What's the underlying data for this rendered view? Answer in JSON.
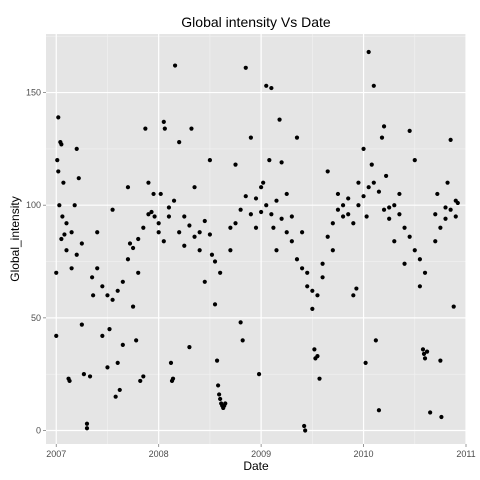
{
  "chart_data": {
    "type": "scatter",
    "title": "Global intensity Vs Date",
    "xlabel": "Date",
    "ylabel": "Global_intensity",
    "xlim": [
      2006.9,
      2011.0
    ],
    "ylim": [
      -6,
      176
    ],
    "x_ticks": [
      {
        "value": 2007,
        "label": "2007"
      },
      {
        "value": 2008,
        "label": "2008"
      },
      {
        "value": 2009,
        "label": "2009"
      },
      {
        "value": 2010,
        "label": "2010"
      },
      {
        "value": 2011,
        "label": "2011"
      }
    ],
    "y_ticks": [
      {
        "value": 0,
        "label": "0"
      },
      {
        "value": 50,
        "label": "50"
      },
      {
        "value": 100,
        "label": "100"
      },
      {
        "value": 150,
        "label": "150"
      }
    ],
    "grid": true,
    "legend": "none",
    "point_color": "#000000",
    "panel_color": "#e5e5e5",
    "points": [
      [
        2007.0,
        42
      ],
      [
        2007.0,
        70
      ],
      [
        2007.01,
        120
      ],
      [
        2007.02,
        139
      ],
      [
        2007.02,
        115
      ],
      [
        2007.03,
        100
      ],
      [
        2007.04,
        128
      ],
      [
        2007.05,
        127
      ],
      [
        2007.06,
        95
      ],
      [
        2007.07,
        110
      ],
      [
        2007.08,
        87
      ],
      [
        2007.1,
        80
      ],
      [
        2007.12,
        23
      ],
      [
        2007.13,
        22
      ],
      [
        2007.15,
        72
      ],
      [
        2007.18,
        100
      ],
      [
        2007.2,
        125
      ],
      [
        2007.22,
        112
      ],
      [
        2007.25,
        47
      ],
      [
        2007.27,
        25
      ],
      [
        2007.3,
        3
      ],
      [
        2007.3,
        1
      ],
      [
        2007.33,
        24
      ],
      [
        2007.36,
        60
      ],
      [
        2007.4,
        88
      ],
      [
        2007.45,
        42
      ],
      [
        2007.5,
        28
      ],
      [
        2007.52,
        45
      ],
      [
        2007.55,
        98
      ],
      [
        2007.58,
        15
      ],
      [
        2007.6,
        30
      ],
      [
        2007.62,
        18
      ],
      [
        2007.65,
        38
      ],
      [
        2007.7,
        108
      ],
      [
        2007.72,
        83
      ],
      [
        2007.75,
        55
      ],
      [
        2007.78,
        40
      ],
      [
        2007.8,
        85
      ],
      [
        2007.82,
        22
      ],
      [
        2007.85,
        24
      ],
      [
        2007.87,
        134
      ],
      [
        2007.9,
        110
      ],
      [
        2007.93,
        97
      ],
      [
        2007.96,
        95
      ],
      [
        2008.0,
        88
      ],
      [
        2008.02,
        105
      ],
      [
        2008.05,
        137
      ],
      [
        2008.06,
        134
      ],
      [
        2008.1,
        95
      ],
      [
        2008.12,
        30
      ],
      [
        2008.13,
        22
      ],
      [
        2008.14,
        23
      ],
      [
        2008.16,
        162
      ],
      [
        2008.2,
        128
      ],
      [
        2008.25,
        82
      ],
      [
        2008.3,
        37
      ],
      [
        2008.32,
        134
      ],
      [
        2008.35,
        108
      ],
      [
        2008.4,
        88
      ],
      [
        2008.45,
        66
      ],
      [
        2008.5,
        120
      ],
      [
        2008.52,
        78
      ],
      [
        2008.55,
        56
      ],
      [
        2008.57,
        31
      ],
      [
        2008.58,
        20
      ],
      [
        2008.59,
        16
      ],
      [
        2008.6,
        14
      ],
      [
        2008.61,
        12
      ],
      [
        2008.62,
        11
      ],
      [
        2008.63,
        10
      ],
      [
        2008.64,
        11
      ],
      [
        2008.65,
        12
      ],
      [
        2008.7,
        90
      ],
      [
        2008.75,
        118
      ],
      [
        2008.8,
        48
      ],
      [
        2008.82,
        40
      ],
      [
        2008.85,
        161
      ],
      [
        2008.9,
        130
      ],
      [
        2008.95,
        103
      ],
      [
        2008.98,
        25
      ],
      [
        2009.0,
        97
      ],
      [
        2009.02,
        110
      ],
      [
        2009.05,
        153
      ],
      [
        2009.08,
        120
      ],
      [
        2009.1,
        152
      ],
      [
        2009.12,
        90
      ],
      [
        2009.15,
        80
      ],
      [
        2009.18,
        138
      ],
      [
        2009.2,
        119
      ],
      [
        2009.25,
        105
      ],
      [
        2009.3,
        95
      ],
      [
        2009.35,
        130
      ],
      [
        2009.4,
        88
      ],
      [
        2009.42,
        2
      ],
      [
        2009.43,
        0
      ],
      [
        2009.45,
        70
      ],
      [
        2009.5,
        54
      ],
      [
        2009.52,
        36
      ],
      [
        2009.53,
        32
      ],
      [
        2009.55,
        33
      ],
      [
        2009.57,
        23
      ],
      [
        2009.6,
        68
      ],
      [
        2009.65,
        115
      ],
      [
        2009.7,
        80
      ],
      [
        2009.75,
        105
      ],
      [
        2009.8,
        95
      ],
      [
        2009.85,
        103
      ],
      [
        2009.9,
        60
      ],
      [
        2009.93,
        63
      ],
      [
        2009.95,
        110
      ],
      [
        2010.0,
        125
      ],
      [
        2010.02,
        30
      ],
      [
        2010.03,
        95
      ],
      [
        2010.05,
        168
      ],
      [
        2010.08,
        118
      ],
      [
        2010.1,
        153
      ],
      [
        2010.12,
        40
      ],
      [
        2010.15,
        9
      ],
      [
        2010.18,
        130
      ],
      [
        2010.2,
        135
      ],
      [
        2010.22,
        113
      ],
      [
        2010.25,
        99
      ],
      [
        2010.3,
        84
      ],
      [
        2010.35,
        105
      ],
      [
        2010.4,
        74
      ],
      [
        2010.45,
        133
      ],
      [
        2010.5,
        120
      ],
      [
        2010.55,
        64
      ],
      [
        2010.58,
        36
      ],
      [
        2010.59,
        34
      ],
      [
        2010.6,
        32
      ],
      [
        2010.62,
        35
      ],
      [
        2010.65,
        8
      ],
      [
        2010.7,
        96
      ],
      [
        2010.72,
        105
      ],
      [
        2010.75,
        31
      ],
      [
        2010.76,
        6
      ],
      [
        2010.8,
        99
      ],
      [
        2010.82,
        110
      ],
      [
        2010.85,
        129
      ],
      [
        2010.88,
        55
      ],
      [
        2010.9,
        95
      ],
      [
        2010.92,
        101
      ],
      [
        2007.05,
        85
      ],
      [
        2007.1,
        92
      ],
      [
        2007.15,
        88
      ],
      [
        2007.2,
        78
      ],
      [
        2007.25,
        83
      ],
      [
        2007.35,
        68
      ],
      [
        2007.4,
        72
      ],
      [
        2007.45,
        64
      ],
      [
        2007.5,
        60
      ],
      [
        2007.55,
        58
      ],
      [
        2007.6,
        62
      ],
      [
        2007.65,
        66
      ],
      [
        2007.7,
        76
      ],
      [
        2007.75,
        81
      ],
      [
        2007.8,
        70
      ],
      [
        2007.85,
        90
      ],
      [
        2007.9,
        96
      ],
      [
        2007.95,
        105
      ],
      [
        2008.0,
        92
      ],
      [
        2008.05,
        84
      ],
      [
        2008.1,
        99
      ],
      [
        2008.15,
        102
      ],
      [
        2008.2,
        88
      ],
      [
        2008.25,
        95
      ],
      [
        2008.3,
        91
      ],
      [
        2008.35,
        86
      ],
      [
        2008.4,
        80
      ],
      [
        2008.45,
        93
      ],
      [
        2008.5,
        87
      ],
      [
        2008.55,
        75
      ],
      [
        2008.6,
        70
      ],
      [
        2008.7,
        80
      ],
      [
        2008.75,
        92
      ],
      [
        2008.8,
        98
      ],
      [
        2008.85,
        104
      ],
      [
        2008.9,
        96
      ],
      [
        2008.95,
        90
      ],
      [
        2009.0,
        108
      ],
      [
        2009.05,
        100
      ],
      [
        2009.1,
        96
      ],
      [
        2009.15,
        102
      ],
      [
        2009.2,
        94
      ],
      [
        2009.25,
        88
      ],
      [
        2009.3,
        84
      ],
      [
        2009.35,
        76
      ],
      [
        2009.4,
        72
      ],
      [
        2009.45,
        64
      ],
      [
        2009.5,
        62
      ],
      [
        2009.55,
        60
      ],
      [
        2009.6,
        74
      ],
      [
        2009.65,
        86
      ],
      [
        2009.7,
        92
      ],
      [
        2009.75,
        98
      ],
      [
        2009.8,
        100
      ],
      [
        2009.85,
        96
      ],
      [
        2009.9,
        92
      ],
      [
        2009.95,
        100
      ],
      [
        2010.0,
        104
      ],
      [
        2010.05,
        108
      ],
      [
        2010.1,
        110
      ],
      [
        2010.15,
        106
      ],
      [
        2010.2,
        98
      ],
      [
        2010.25,
        94
      ],
      [
        2010.3,
        100
      ],
      [
        2010.35,
        96
      ],
      [
        2010.4,
        90
      ],
      [
        2010.45,
        86
      ],
      [
        2010.5,
        80
      ],
      [
        2010.55,
        76
      ],
      [
        2010.6,
        70
      ],
      [
        2010.7,
        84
      ],
      [
        2010.75,
        90
      ],
      [
        2010.8,
        94
      ],
      [
        2010.85,
        98
      ],
      [
        2010.9,
        102
      ]
    ]
  }
}
